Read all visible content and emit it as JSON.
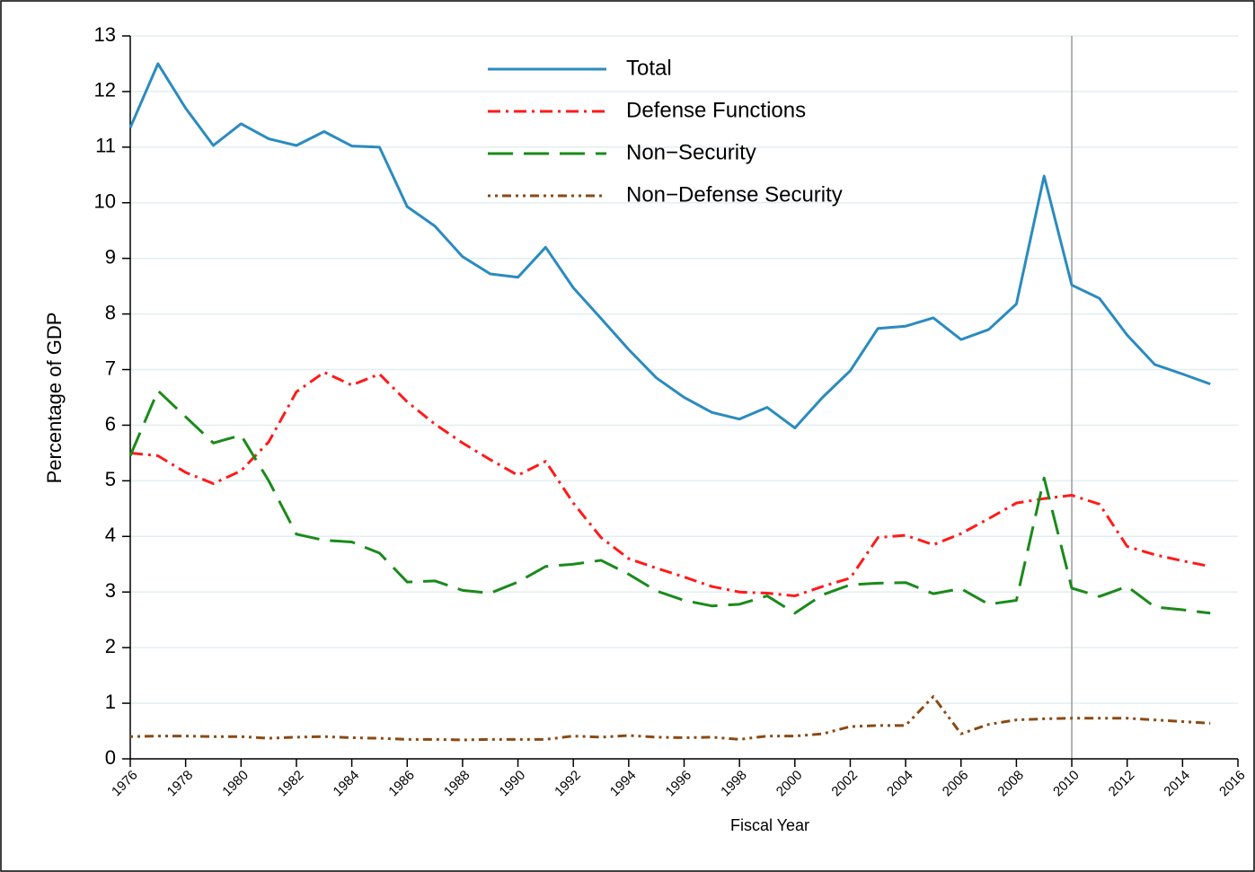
{
  "chart_data": {
    "type": "line",
    "ylabel": "Percentage of GDP",
    "xlabel": "Fiscal Year",
    "x": [
      1976,
      1977,
      1978,
      1979,
      1980,
      1981,
      1982,
      1983,
      1984,
      1985,
      1986,
      1987,
      1988,
      1989,
      1990,
      1991,
      1992,
      1993,
      1994,
      1995,
      1996,
      1997,
      1998,
      1999,
      2000,
      2001,
      2002,
      2003,
      2004,
      2005,
      2006,
      2007,
      2008,
      2009,
      2010,
      2011,
      2012,
      2013,
      2014,
      2015
    ],
    "series": [
      {
        "name": "Total",
        "color": "#2a8bc0",
        "style": "solid",
        "values": [
          11.35,
          12.5,
          11.7,
          11.03,
          11.42,
          11.15,
          11.03,
          11.28,
          11.02,
          11.0,
          9.93,
          9.58,
          9.03,
          8.72,
          8.66,
          9.2,
          8.47,
          7.92,
          7.36,
          6.85,
          6.5,
          6.23,
          6.11,
          6.32,
          5.95,
          6.5,
          6.98,
          7.74,
          7.78,
          7.93,
          7.54,
          7.72,
          8.18,
          10.48,
          8.52,
          8.28,
          7.62,
          7.09,
          6.92,
          6.74
        ]
      },
      {
        "name": "Defense Functions",
        "color": "#ff1a1a",
        "style": "dashdot",
        "values": [
          5.5,
          5.45,
          5.15,
          4.95,
          5.18,
          5.7,
          6.6,
          6.95,
          6.72,
          6.92,
          6.42,
          6.02,
          5.68,
          5.38,
          5.1,
          5.35,
          4.6,
          3.98,
          3.6,
          3.43,
          3.27,
          3.1,
          3.0,
          2.98,
          2.93,
          3.1,
          3.25,
          3.98,
          4.02,
          3.85,
          4.05,
          4.32,
          4.6,
          4.68,
          4.74,
          4.58,
          3.82,
          3.67,
          3.56,
          3.46
        ]
      },
      {
        "name": "Non−Security",
        "color": "#1a8a1a",
        "style": "dashed",
        "values": [
          5.45,
          6.62,
          6.15,
          5.68,
          5.82,
          5.0,
          4.04,
          3.93,
          3.9,
          3.7,
          3.18,
          3.2,
          3.03,
          2.98,
          3.18,
          3.46,
          3.5,
          3.57,
          3.32,
          3.02,
          2.85,
          2.75,
          2.78,
          2.93,
          2.62,
          2.95,
          3.13,
          3.16,
          3.17,
          2.97,
          3.06,
          2.78,
          2.85,
          5.05,
          3.07,
          2.92,
          3.1,
          2.73,
          2.68,
          2.62
        ]
      },
      {
        "name": "Non−Defense Security",
        "color": "#8b4a14",
        "style": "dotdash",
        "values": [
          0.4,
          0.41,
          0.41,
          0.4,
          0.4,
          0.37,
          0.39,
          0.4,
          0.38,
          0.37,
          0.35,
          0.35,
          0.34,
          0.35,
          0.35,
          0.35,
          0.41,
          0.39,
          0.42,
          0.39,
          0.38,
          0.39,
          0.35,
          0.41,
          0.41,
          0.45,
          0.58,
          0.6,
          0.6,
          1.12,
          0.45,
          0.62,
          0.7,
          0.72,
          0.73,
          0.73,
          0.73,
          0.7,
          0.67,
          0.64
        ]
      }
    ],
    "xlim": [
      1976,
      2016
    ],
    "xticks": [
      1976,
      1978,
      1980,
      1982,
      1984,
      1986,
      1988,
      1990,
      1992,
      1994,
      1996,
      1998,
      2000,
      2002,
      2004,
      2006,
      2008,
      2010,
      2012,
      2014,
      2016
    ],
    "ylim": [
      0,
      13
    ],
    "yticks": [
      0,
      1,
      2,
      3,
      4,
      5,
      6,
      7,
      8,
      9,
      10,
      11,
      12,
      13
    ],
    "grid": true,
    "vline": 2010,
    "legend": "top"
  }
}
